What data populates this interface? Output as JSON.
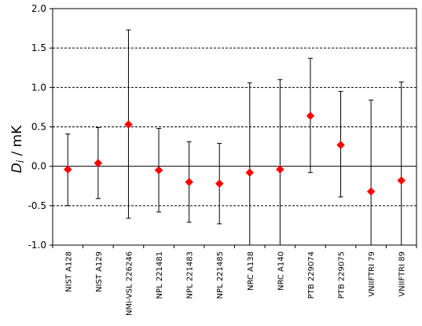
{
  "chart_data": {
    "type": "scatter",
    "ylabel_main": "D",
    "ylabel_sub": "i",
    "ylabel_unit": "/ mK",
    "ylim": [
      -1.0,
      2.0
    ],
    "yticks": [
      -1.0,
      -0.5,
      0.0,
      0.5,
      1.0,
      1.5,
      2.0
    ],
    "ytick_labels": [
      "-1.0",
      "-0.5",
      "0.0",
      "0.5",
      "1.0",
      "1.5",
      "2.0"
    ],
    "grid": "dashed horizontal at 0.5, 1.0, 1.5, -0.5",
    "categories": [
      "NIST A128",
      "NIST A129",
      "NMi-VSL 226246",
      "NPL 221481",
      "NPL 221483",
      "NPL 221485",
      "NRC A138",
      "NRC A140",
      "PTB 229074",
      "PTB 229075",
      "VNIIFTRI 79",
      "VNIIFTRI 89"
    ],
    "values": [
      -0.04,
      0.04,
      0.53,
      -0.05,
      -0.2,
      -0.22,
      -0.08,
      -0.04,
      0.64,
      0.27,
      -0.32,
      -0.18
    ],
    "error_low": [
      -0.5,
      -0.41,
      -0.66,
      -0.58,
      -0.71,
      -0.73,
      -1.0,
      -1.0,
      -0.08,
      -0.39,
      -1.0,
      -1.0
    ],
    "error_high": [
      0.41,
      0.49,
      1.73,
      0.48,
      0.31,
      0.29,
      1.06,
      1.1,
      1.37,
      0.95,
      0.84,
      1.07
    ],
    "marker_color": "#ff0000",
    "errorbar_color": "#000000"
  }
}
